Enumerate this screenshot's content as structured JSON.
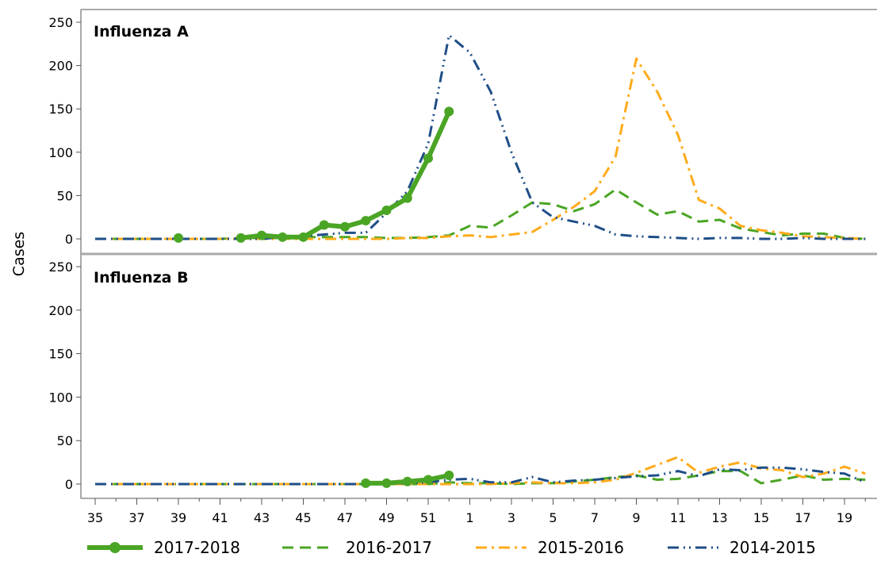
{
  "chart_data": {
    "type": "line",
    "ylabel": "Cases",
    "xlabel": "",
    "x": [
      "35",
      "36",
      "37",
      "38",
      "39",
      "40",
      "41",
      "42",
      "43",
      "44",
      "45",
      "46",
      "47",
      "48",
      "49",
      "50",
      "51",
      "52",
      "1",
      "2",
      "3",
      "4",
      "5",
      "6",
      "7",
      "8",
      "9",
      "10",
      "11",
      "12",
      "13",
      "14",
      "15",
      "16",
      "17",
      "18",
      "19",
      "20"
    ],
    "x_ticks": [
      "35",
      "37",
      "39",
      "41",
      "43",
      "45",
      "47",
      "49",
      "51",
      "1",
      "3",
      "5",
      "7",
      "9",
      "11",
      "13",
      "15",
      "17",
      "19"
    ],
    "y_ticks": [
      0,
      50,
      100,
      150,
      200,
      250
    ],
    "ylim": [
      0,
      260
    ],
    "grid": false,
    "legend_position": "bottom",
    "colors": {
      "2017-2018": "#4aa524",
      "2016-2017": "#4aa524",
      "2015-2016": "#ffab1b",
      "2014-2015": "#1f4e87",
      "panel_separator": "#a9a9a9",
      "axis": "#555555"
    },
    "legend": [
      "2017-2018",
      "2016-2017",
      "2015-2016",
      "2014-2015"
    ],
    "panels": [
      {
        "title": "Influenza A",
        "series": [
          {
            "name": "2017-2018",
            "values": [
              null,
              null,
              null,
              null,
              1,
              null,
              null,
              1,
              4,
              2,
              2,
              16,
              14,
              21,
              33,
              47,
              93,
              147,
              null,
              null,
              null,
              null,
              null,
              null,
              null,
              null,
              null,
              null,
              null,
              null,
              null,
              null,
              null,
              null,
              null,
              null,
              null,
              null
            ]
          },
          {
            "name": "2016-2017",
            "values": [
              0,
              0,
              0,
              0,
              0,
              0,
              0,
              1,
              1,
              1,
              2,
              2,
              2,
              2,
              1,
              1,
              2,
              4,
              15,
              13,
              27,
              42,
              40,
              32,
              40,
              57,
              42,
              28,
              32,
              20,
              22,
              12,
              8,
              4,
              6,
              6,
              1,
              0
            ]
          },
          {
            "name": "2015-2016",
            "values": [
              0,
              0,
              0,
              0,
              0,
              0,
              0,
              0,
              0,
              0,
              0,
              0,
              0,
              0,
              0,
              1,
              1,
              3,
              4,
              2,
              5,
              8,
              22,
              37,
              55,
              95,
              208,
              170,
              120,
              45,
              35,
              15,
              10,
              7,
              3,
              2,
              1,
              0
            ]
          },
          {
            "name": "2014-2015",
            "values": [
              0,
              0,
              0,
              0,
              0,
              0,
              0,
              0,
              0,
              2,
              3,
              5,
              7,
              7,
              30,
              55,
              110,
              235,
              215,
              170,
              100,
              42,
              25,
              20,
              15,
              5,
              3,
              2,
              1,
              0,
              1,
              1,
              0,
              0,
              1,
              0,
              0,
              0
            ]
          }
        ]
      },
      {
        "title": "Influenza B",
        "series": [
          {
            "name": "2017-2018",
            "values": [
              null,
              null,
              null,
              null,
              null,
              null,
              null,
              null,
              null,
              null,
              null,
              null,
              null,
              1,
              1,
              3,
              5,
              10,
              null,
              null,
              null,
              null,
              null,
              null,
              null,
              null,
              null,
              null,
              null,
              null,
              null,
              null,
              null,
              null,
              null,
              null,
              null,
              null
            ]
          },
          {
            "name": "2016-2017",
            "values": [
              0,
              0,
              0,
              0,
              0,
              0,
              0,
              0,
              0,
              0,
              0,
              0,
              0,
              0,
              0,
              0,
              0,
              2,
              1,
              1,
              0,
              1,
              1,
              3,
              5,
              8,
              10,
              5,
              6,
              10,
              15,
              15,
              1,
              5,
              10,
              5,
              6,
              5
            ]
          },
          {
            "name": "2015-2016",
            "values": [
              0,
              0,
              0,
              0,
              0,
              0,
              0,
              0,
              0,
              0,
              0,
              0,
              0,
              0,
              0,
              0,
              0,
              0,
              0,
              0,
              1,
              2,
              1,
              1,
              2,
              5,
              13,
              22,
              31,
              13,
              20,
              25,
              18,
              16,
              8,
              12,
              20,
              12
            ]
          },
          {
            "name": "2014-2015",
            "values": [
              0,
              0,
              0,
              0,
              0,
              0,
              0,
              0,
              0,
              0,
              0,
              0,
              0,
              0,
              0,
              1,
              2,
              5,
              6,
              2,
              2,
              8,
              2,
              4,
              5,
              7,
              9,
              10,
              15,
              9,
              17,
              16,
              19,
              19,
              17,
              14,
              12,
              2
            ]
          }
        ]
      }
    ]
  }
}
